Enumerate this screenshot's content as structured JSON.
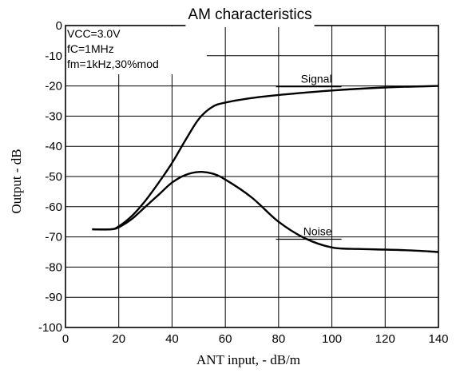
{
  "chart_data": {
    "type": "line",
    "title": "AM characteristics",
    "xlabel": "ANT input, - dB/m",
    "ylabel": "Output - dB",
    "xlim": [
      0,
      140
    ],
    "ylim": [
      -100,
      0
    ],
    "xticks": [
      0,
      20,
      40,
      60,
      80,
      100,
      120,
      140
    ],
    "yticks": [
      0,
      -10,
      -20,
      -30,
      -40,
      -50,
      -60,
      -70,
      -80,
      -90,
      -100
    ],
    "grid": true,
    "conditions": [
      "VCC=3.0V",
      "fC=1MHz",
      "fm=1kHz,30%mod"
    ],
    "series": [
      {
        "name": "Signal",
        "x": [
          10,
          17,
          20,
          25,
          30,
          35,
          40,
          45,
          50,
          55,
          60,
          70,
          80,
          100,
          120,
          140
        ],
        "y": [
          -67.5,
          -67.5,
          -66.5,
          -63,
          -58,
          -52,
          -45.5,
          -38,
          -31,
          -27,
          -25.5,
          -24,
          -23,
          -21.5,
          -20.5,
          -20
        ]
      },
      {
        "name": "Noise",
        "x": [
          10,
          17,
          20,
          25,
          30,
          35,
          40,
          45,
          50,
          55,
          60,
          70,
          80,
          90,
          100,
          110,
          120,
          130,
          140
        ],
        "y": [
          -67.5,
          -67.5,
          -66.8,
          -64,
          -60,
          -56,
          -52,
          -49.5,
          -48.5,
          -49,
          -51,
          -57,
          -65,
          -70.5,
          -73.5,
          -74,
          -74.2,
          -74.5,
          -75
        ]
      }
    ],
    "series_label_positions": {
      "Signal": [
        100,
        -20
      ],
      "Noise": [
        100,
        -70.5
      ]
    }
  }
}
